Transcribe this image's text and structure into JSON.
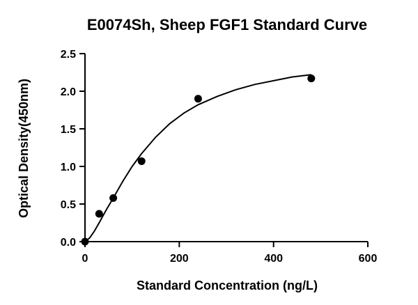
{
  "chart_data": {
    "type": "scatter",
    "title": "E0074Sh, Sheep FGF1 Standard Curve",
    "xlabel": "Standard Concentration (ng/L)",
    "ylabel": "Optical Density(450nm)",
    "xlim": [
      0,
      600
    ],
    "ylim": [
      0,
      2.5
    ],
    "xticks": [
      0,
      200,
      400,
      600
    ],
    "yticks": [
      0.0,
      0.5,
      1.0,
      1.5,
      2.0,
      2.5
    ],
    "xtick_labels": [
      "0",
      "200",
      "400",
      "600"
    ],
    "ytick_labels": [
      "0.0",
      "0.5",
      "1.0",
      "1.5",
      "2.0",
      "2.5"
    ],
    "grid": false,
    "series": [
      {
        "points": [
          {
            "x": 0,
            "y": 0.0
          },
          {
            "x": 30,
            "y": 0.37
          },
          {
            "x": 60,
            "y": 0.58
          },
          {
            "x": 120,
            "y": 1.07
          },
          {
            "x": 240,
            "y": 1.9
          },
          {
            "x": 480,
            "y": 2.17
          }
        ],
        "marker_color": "#000000"
      }
    ],
    "fit_curve": [
      {
        "x": 0,
        "y": 0.0
      },
      {
        "x": 10,
        "y": 0.05
      },
      {
        "x": 20,
        "y": 0.14
      },
      {
        "x": 30,
        "y": 0.25
      },
      {
        "x": 45,
        "y": 0.42
      },
      {
        "x": 60,
        "y": 0.58
      },
      {
        "x": 80,
        "y": 0.8
      },
      {
        "x": 100,
        "y": 1.0
      },
      {
        "x": 120,
        "y": 1.17
      },
      {
        "x": 150,
        "y": 1.39
      },
      {
        "x": 180,
        "y": 1.57
      },
      {
        "x": 210,
        "y": 1.71
      },
      {
        "x": 240,
        "y": 1.82
      },
      {
        "x": 280,
        "y": 1.93
      },
      {
        "x": 320,
        "y": 2.02
      },
      {
        "x": 360,
        "y": 2.09
      },
      {
        "x": 400,
        "y": 2.14
      },
      {
        "x": 440,
        "y": 2.19
      },
      {
        "x": 480,
        "y": 2.22
      }
    ],
    "line_color": "#000000"
  }
}
